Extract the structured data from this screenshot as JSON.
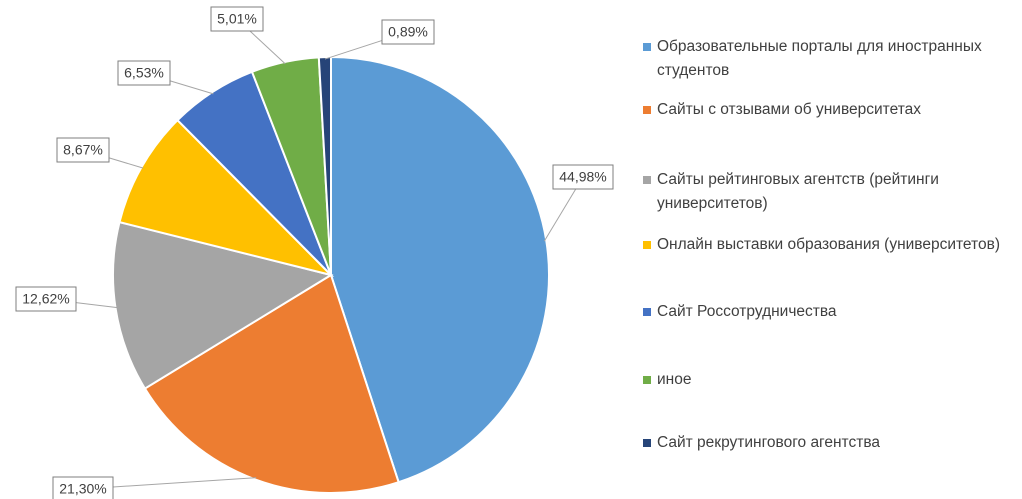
{
  "chart_data": {
    "type": "pie",
    "categories": [
      "Образовательные порталы для иностранных студентов",
      "Сайты с отзывами об университетах",
      "Сайты рейтинговых агентств (рейтинги университетов)",
      "Онлайн выставки образования (университетов)",
      "Сайт Россотрудничества",
      "иное",
      "Сайт рекрутингового агентства"
    ],
    "values": [
      44.98,
      21.3,
      12.62,
      8.67,
      6.53,
      5.01,
      0.89
    ],
    "value_labels": [
      "44,98%",
      "21,30%",
      "12,62%",
      "8,67%",
      "6,53%",
      "5,01%",
      "0,89%"
    ],
    "colors": [
      "#5b9bd5",
      "#ed7d31",
      "#a5a5a5",
      "#ffc000",
      "#4472c4",
      "#70ad47",
      "#264478"
    ],
    "legend": "right"
  }
}
